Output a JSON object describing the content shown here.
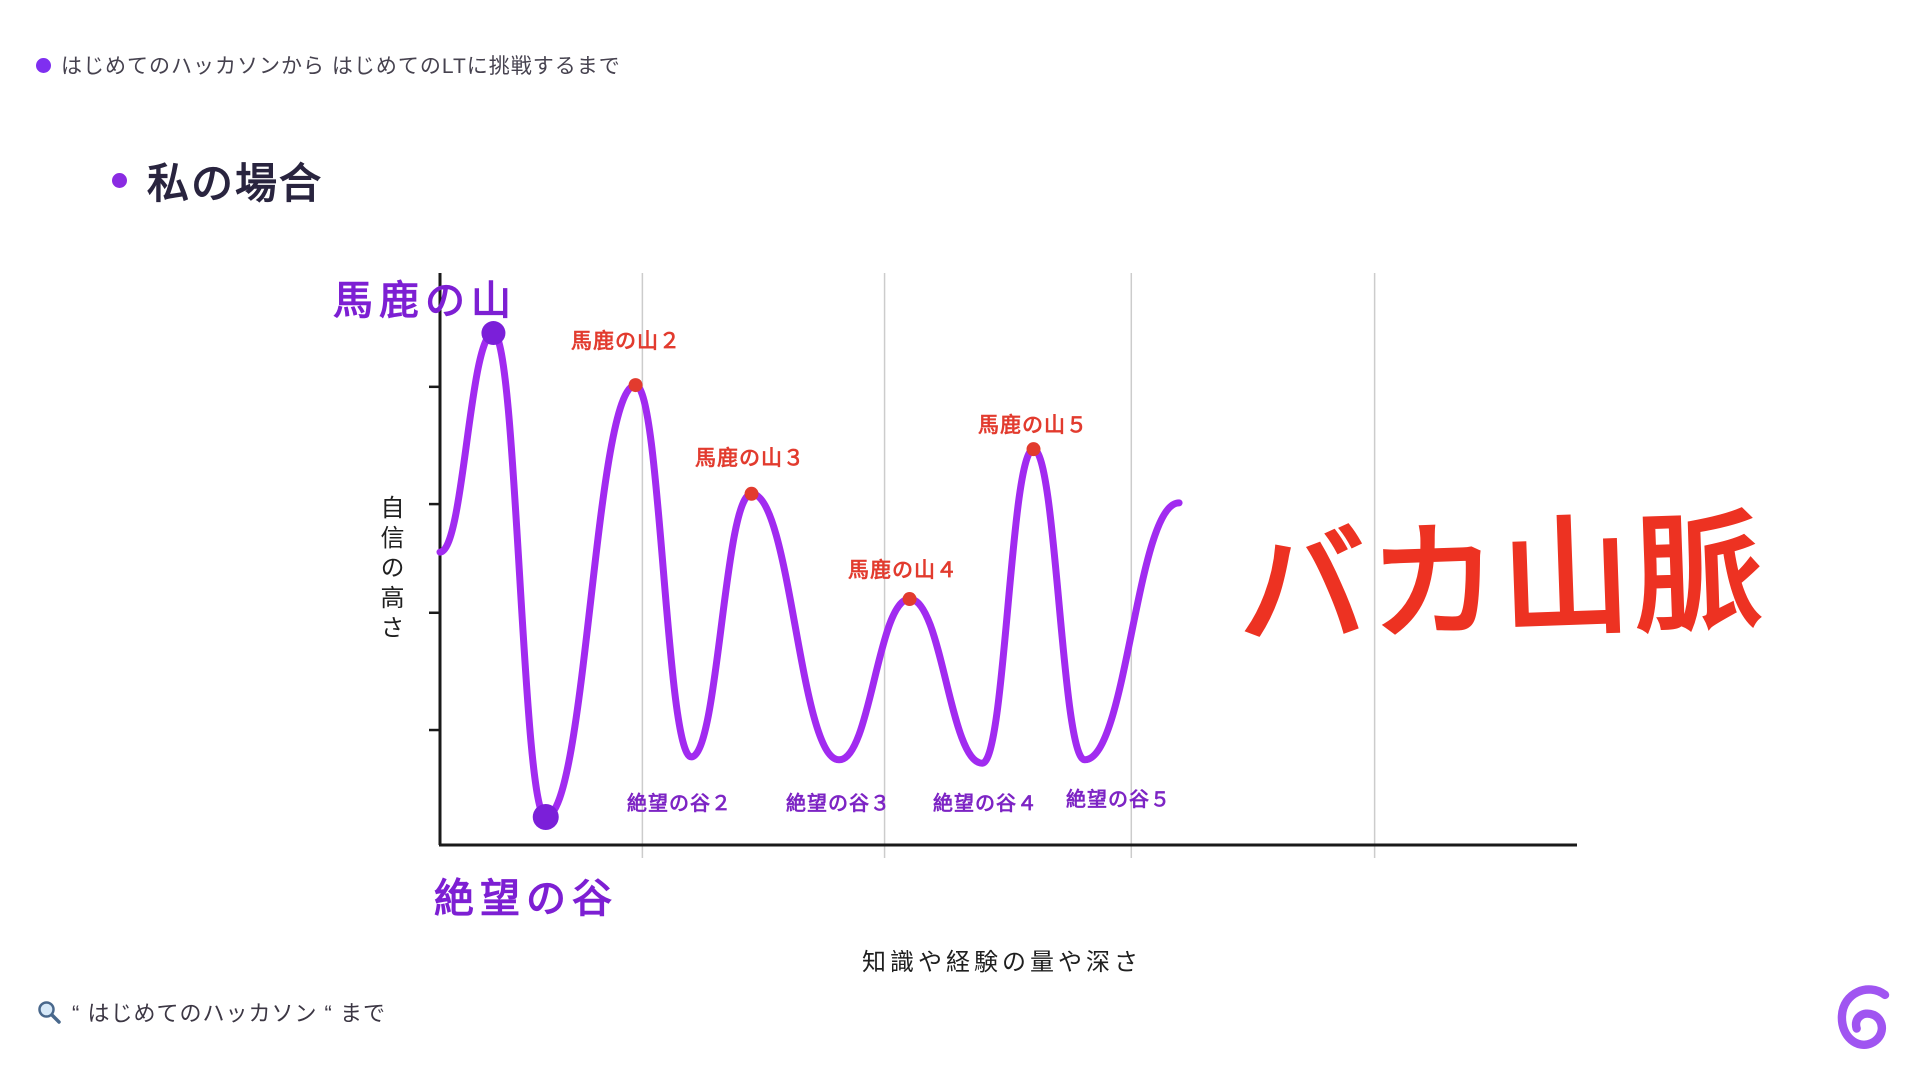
{
  "header": {
    "text": "はじめてのハッカソンから はじめてのLTに挑戦するまで"
  },
  "slide_title": {
    "text": "私の場合"
  },
  "chart_data": {
    "type": "line",
    "description": "ダニング＝クルーガー風の自信曲線。馬鹿の山と絶望の谷を繰り返す（バカ山脈）",
    "xlabel": "知識や経験の量や深さ",
    "ylabel": "自信の高さ",
    "curve_color": "#A12BF0",
    "axis_color": "#1A1A1A",
    "grid_color": "#CCCCCC",
    "grid": true,
    "legend": false,
    "x_range_rel": [
      0,
      1
    ],
    "y_range_rel": [
      0,
      1
    ],
    "gridlines_x_rel": [
      0.178,
      0.391,
      0.608,
      0.822
    ],
    "y_ticks_rel": [
      0.201,
      0.406,
      0.596,
      0.801
    ],
    "points_rel": [
      {
        "x": 0.0,
        "y": 0.512,
        "kind": "start"
      },
      {
        "x": 0.047,
        "y": 0.895,
        "kind": "peak",
        "label": "馬鹿の山",
        "marker": {
          "color": "#7B1FD9",
          "r": 12
        }
      },
      {
        "x": 0.093,
        "y": 0.049,
        "kind": "valley",
        "label": "絶望の谷",
        "marker": {
          "color": "#7B1FD9",
          "r": 13
        }
      },
      {
        "x": 0.172,
        "y": 0.804,
        "kind": "peak",
        "label": "馬鹿の山２",
        "marker": {
          "color": "#E23B2E",
          "r": 7
        }
      },
      {
        "x": 0.221,
        "y": 0.154,
        "kind": "valley",
        "label": "絶望の谷２"
      },
      {
        "x": 0.274,
        "y": 0.614,
        "kind": "peak",
        "label": "馬鹿の山３",
        "marker": {
          "color": "#E23B2E",
          "r": 7
        }
      },
      {
        "x": 0.351,
        "y": 0.149,
        "kind": "valley",
        "label": "絶望の谷３"
      },
      {
        "x": 0.413,
        "y": 0.43,
        "kind": "peak",
        "label": "馬鹿の山４",
        "marker": {
          "color": "#E23B2E",
          "r": 7
        }
      },
      {
        "x": 0.477,
        "y": 0.143,
        "kind": "valley",
        "label": "絶望の谷４"
      },
      {
        "x": 0.522,
        "y": 0.692,
        "kind": "peak",
        "label": "馬鹿の山５",
        "marker": {
          "color": "#E23B2E",
          "r": 7
        }
      },
      {
        "x": 0.567,
        "y": 0.149,
        "kind": "valley",
        "label": "絶望の谷５"
      },
      {
        "x": 0.65,
        "y": 0.598,
        "kind": "end"
      }
    ]
  },
  "mountain_range": {
    "text": "バカ山脈",
    "color": "#ED3222"
  },
  "footer": {
    "icon": "search-icon",
    "text": "“ はじめてのハッカソン “ まで"
  },
  "logo": {
    "name": "spiral-e-logo",
    "color": "#9B4CF0"
  },
  "colors": {
    "accent_purple": "#7F2FF0",
    "curve_purple": "#A12BF0",
    "marker_purple": "#7B1FD9",
    "alert_red": "#E23B2E",
    "range_red": "#ED3222",
    "axis": "#1A1A1A",
    "grid": "#CCCCCC",
    "title_text": "#29243F"
  }
}
